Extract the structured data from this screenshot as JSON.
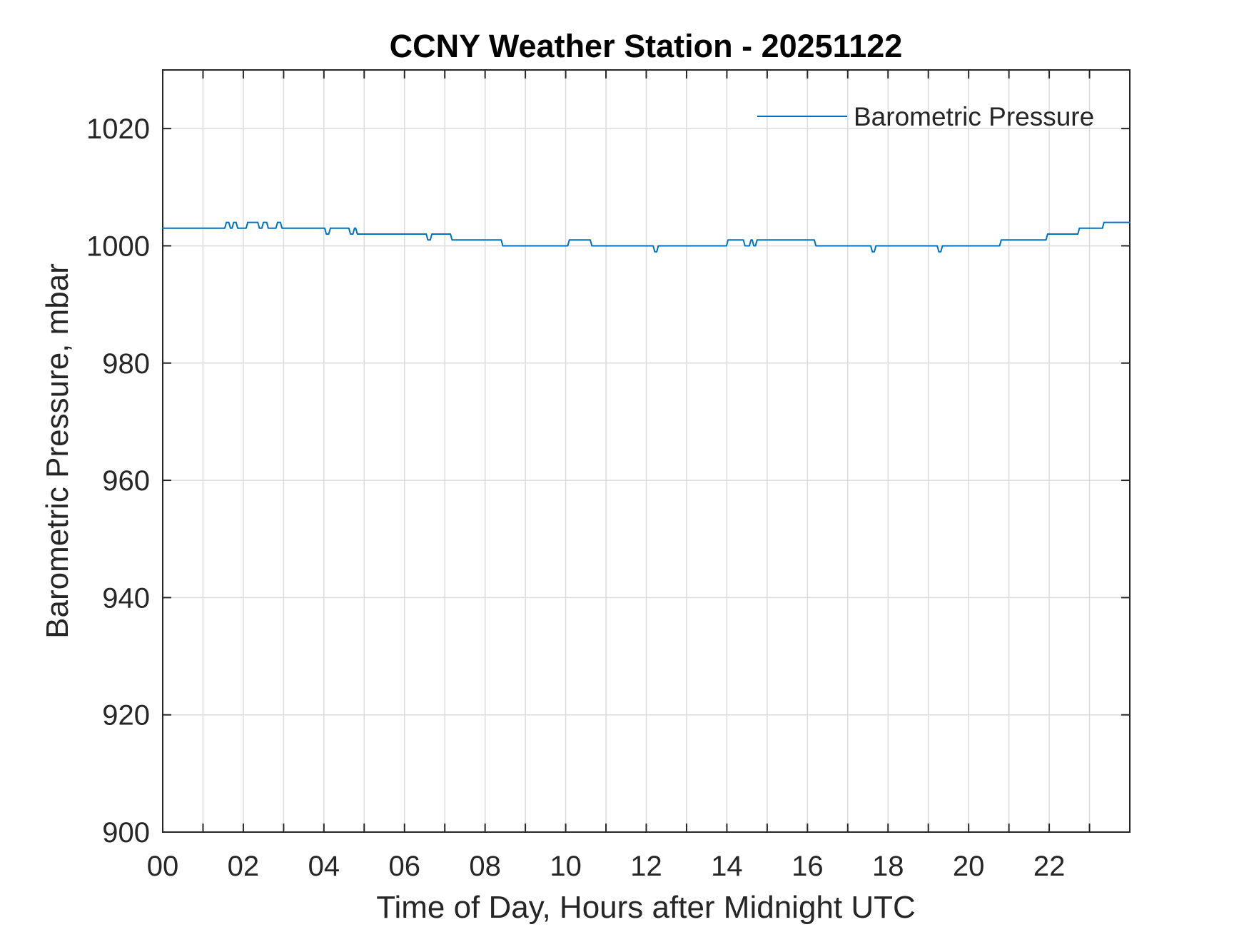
{
  "chart_data": {
    "type": "line",
    "title": "CCNY Weather Station - 20251122",
    "xlabel": "Time of Day, Hours after Midnight UTC",
    "ylabel": "Barometric Pressure, mbar",
    "xlim": [
      0,
      24
    ],
    "ylim": [
      900,
      1030
    ],
    "x_major_ticks": [
      0,
      2,
      4,
      6,
      8,
      10,
      12,
      14,
      16,
      18,
      20,
      22
    ],
    "x_major_tick_labels": [
      "00",
      "02",
      "04",
      "06",
      "08",
      "10",
      "12",
      "14",
      "16",
      "18",
      "20",
      "22"
    ],
    "x_grid_step_hours": 1,
    "y_ticks": [
      900,
      920,
      940,
      960,
      980,
      1000,
      1020
    ],
    "y_tick_labels": [
      "900",
      "920",
      "940",
      "960",
      "980",
      "1000",
      "1020"
    ],
    "grid": "on",
    "legend": {
      "position": "top-right",
      "boxed": false,
      "entries": [
        {
          "label": "Barometric Pressure",
          "color": "#0072BD"
        }
      ]
    },
    "colors": {
      "line": "#0072BD",
      "grid": "#dcdcdc",
      "axis": "#262626",
      "tick_text": "#262626",
      "title_text": "#000000"
    },
    "series": [
      {
        "name": "Barometric Pressure",
        "unit": "mbar",
        "points": [
          [
            0.0,
            1003
          ],
          [
            1.54,
            1003
          ],
          [
            1.58,
            1004
          ],
          [
            1.64,
            1004
          ],
          [
            1.68,
            1003
          ],
          [
            1.72,
            1003
          ],
          [
            1.76,
            1004
          ],
          [
            1.82,
            1004
          ],
          [
            1.86,
            1003
          ],
          [
            2.07,
            1003
          ],
          [
            2.11,
            1004
          ],
          [
            2.36,
            1004
          ],
          [
            2.4,
            1003
          ],
          [
            2.46,
            1003
          ],
          [
            2.5,
            1004
          ],
          [
            2.58,
            1004
          ],
          [
            2.62,
            1003
          ],
          [
            2.81,
            1003
          ],
          [
            2.85,
            1004
          ],
          [
            2.92,
            1004
          ],
          [
            2.96,
            1003
          ],
          [
            4.02,
            1003
          ],
          [
            4.06,
            1002
          ],
          [
            4.12,
            1002
          ],
          [
            4.16,
            1003
          ],
          [
            4.62,
            1003
          ],
          [
            4.66,
            1002
          ],
          [
            4.72,
            1002
          ],
          [
            4.76,
            1003
          ],
          [
            4.79,
            1003
          ],
          [
            4.83,
            1002
          ],
          [
            4.95,
            1002
          ],
          [
            6.54,
            1002
          ],
          [
            6.58,
            1001
          ],
          [
            6.64,
            1001
          ],
          [
            6.68,
            1002
          ],
          [
            7.14,
            1002
          ],
          [
            7.18,
            1001
          ],
          [
            8.4,
            1001
          ],
          [
            8.44,
            1000
          ],
          [
            10.05,
            1000
          ],
          [
            10.09,
            1001
          ],
          [
            10.61,
            1001
          ],
          [
            10.65,
            1000
          ],
          [
            12.17,
            1000
          ],
          [
            12.21,
            999
          ],
          [
            12.26,
            999
          ],
          [
            12.3,
            1000
          ],
          [
            13.99,
            1000
          ],
          [
            14.03,
            1001
          ],
          [
            14.41,
            1001
          ],
          [
            14.45,
            1000
          ],
          [
            14.56,
            1000
          ],
          [
            14.6,
            1001
          ],
          [
            14.63,
            1001
          ],
          [
            14.67,
            1000
          ],
          [
            14.71,
            1000
          ],
          [
            14.75,
            1001
          ],
          [
            16.17,
            1001
          ],
          [
            16.21,
            1000
          ],
          [
            17.57,
            1000
          ],
          [
            17.61,
            999
          ],
          [
            17.66,
            999
          ],
          [
            17.7,
            1000
          ],
          [
            19.22,
            1000
          ],
          [
            19.26,
            999
          ],
          [
            19.31,
            999
          ],
          [
            19.35,
            1000
          ],
          [
            20.77,
            1000
          ],
          [
            20.81,
            1001
          ],
          [
            21.92,
            1001
          ],
          [
            21.96,
            1002
          ],
          [
            22.71,
            1002
          ],
          [
            22.75,
            1003
          ],
          [
            23.32,
            1003
          ],
          [
            23.36,
            1004
          ],
          [
            24.0,
            1004
          ]
        ]
      }
    ]
  }
}
